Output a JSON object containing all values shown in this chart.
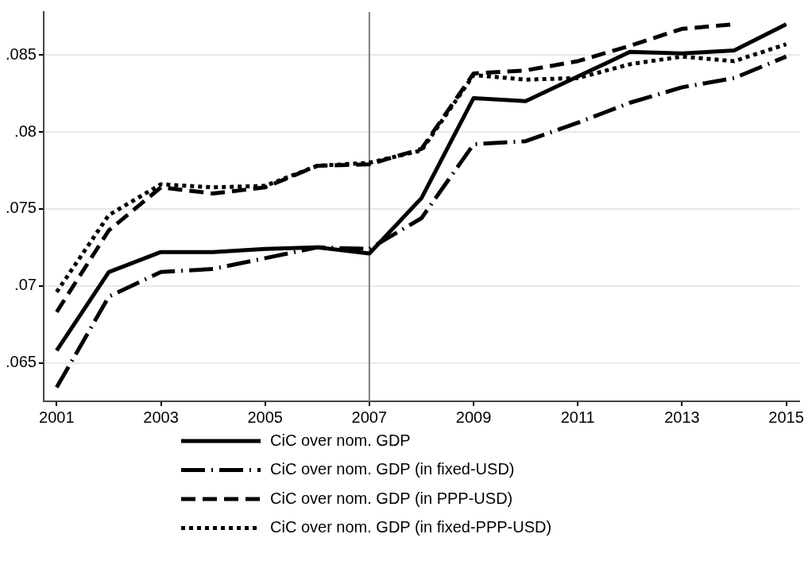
{
  "chart_data": {
    "type": "line",
    "x": [
      2001,
      2002,
      2003,
      2004,
      2005,
      2006,
      2007,
      2008,
      2009,
      2010,
      2011,
      2012,
      2013,
      2014,
      2015
    ],
    "series": [
      {
        "name": "CiC over nom. GDP",
        "color": "#000000",
        "line_style": "solid",
        "values": [
          0.0658,
          0.0709,
          0.0722,
          0.0722,
          0.0724,
          0.0725,
          0.0721,
          0.0757,
          0.0822,
          0.082,
          0.0836,
          0.0852,
          0.0851,
          0.0853,
          0.087
        ]
      },
      {
        "name": "CiC over nom. GDP (in fixed-USD)",
        "color": "#000000",
        "line_style": "dashdot",
        "values": [
          0.0634,
          0.0693,
          0.0709,
          0.0711,
          0.0718,
          0.0725,
          0.0724,
          0.0744,
          0.0792,
          0.0794,
          0.0806,
          0.0819,
          0.0829,
          0.0835,
          0.0849
        ]
      },
      {
        "name": "CiC over nom. GDP (in PPP-USD)",
        "color": "#000000",
        "line_style": "dashed",
        "values": [
          0.0683,
          0.0736,
          0.0764,
          0.076,
          0.0764,
          0.0778,
          0.0779,
          0.0789,
          0.0838,
          0.084,
          0.0846,
          0.0856,
          0.0867,
          0.087,
          null
        ]
      },
      {
        "name": "CiC over nom. GDP (in fixed-PPP-USD)",
        "color": "#000000",
        "line_style": "dotted",
        "values": [
          0.0696,
          0.0746,
          0.0766,
          0.0764,
          0.0765,
          0.0778,
          0.078,
          0.0788,
          0.0837,
          0.0834,
          0.0835,
          0.0844,
          0.0849,
          0.0846,
          0.0857
        ]
      }
    ],
    "xlim": [
      2000.75,
      2015.25
    ],
    "xticks": [
      2001,
      2003,
      2005,
      2007,
      2009,
      2011,
      2013,
      2015
    ],
    "ylim": [
      0.0625,
      0.0878
    ],
    "yticks": [
      {
        "value": 0.065,
        "label": ".065"
      },
      {
        "value": 0.07,
        "label": ".07"
      },
      {
        "value": 0.075,
        "label": ".075"
      },
      {
        "value": 0.08,
        "label": ".08"
      },
      {
        "value": 0.085,
        "label": ".085"
      }
    ],
    "ref_lines": [
      {
        "axis": "x",
        "value": 2007,
        "color": "#7f7f7f"
      }
    ],
    "grid": "y",
    "legend": "bottom",
    "marker": "none"
  }
}
